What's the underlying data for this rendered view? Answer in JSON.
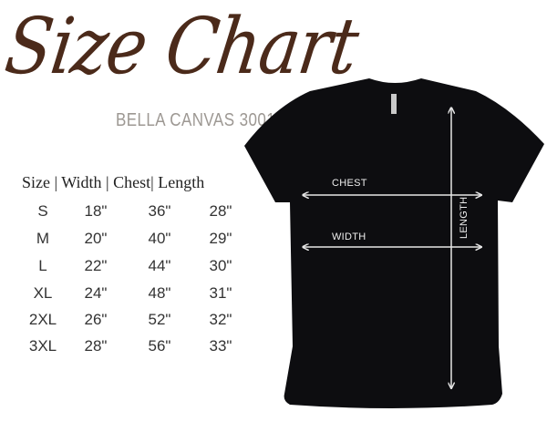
{
  "title": "Size Chart",
  "subtitle": "BELLA CANVAS 3001",
  "table": {
    "header": "Size | Width | Chest| Length",
    "rows": [
      [
        "S",
        "18\"",
        "36\"",
        "28\""
      ],
      [
        "M",
        "20\"",
        "40\"",
        "29\""
      ],
      [
        "L",
        "22\"",
        "44\"",
        "30\""
      ],
      [
        "XL",
        "24\"",
        "48\"",
        "31\""
      ],
      [
        "2XL",
        "26\"",
        "52\"",
        "32\""
      ],
      [
        "3XL",
        "28\"",
        "56\"",
        "33\""
      ]
    ]
  },
  "diagram": {
    "chest_label": "CHEST",
    "width_label": "WIDTH",
    "length_label": "LENGTH",
    "shirt_color": "#0d0d10",
    "arrow_color": "#e6e6e6"
  },
  "colors": {
    "title": "#4b2a1a",
    "subtitle": "#9d9893"
  }
}
